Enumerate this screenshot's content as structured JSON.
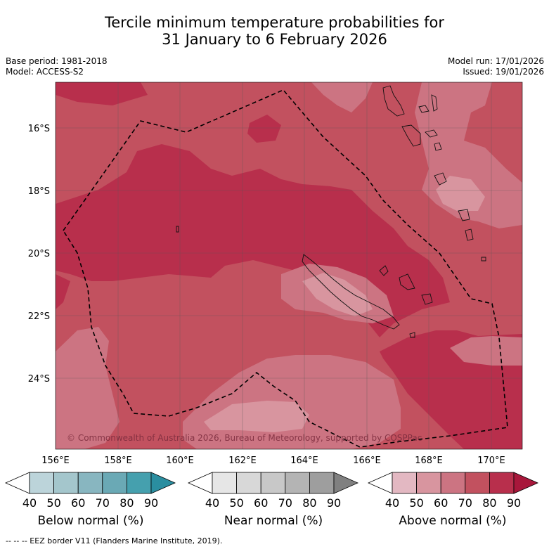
{
  "title": {
    "line1": "Tercile minimum temperature probabilities for",
    "line2": "31 January to 6 February 2026"
  },
  "meta": {
    "base_period": "Base period: 1981-2018",
    "model": "Model: ACCESS-S2",
    "model_run": "Model run: 17/01/2026",
    "issued": "Issued: 19/01/2026"
  },
  "map": {
    "lat_labels": [
      "16°S",
      "18°S",
      "20°S",
      "22°S",
      "24°S"
    ],
    "lon_labels": [
      "156°E",
      "158°E",
      "160°E",
      "162°E",
      "164°E",
      "166°E",
      "168°E",
      "170°E"
    ],
    "copyright": "© Commonwealth of Australia 2026, Bureau of Meteorology, supported by COSPPac"
  },
  "legend": {
    "tick_labels": [
      "40",
      "50",
      "60",
      "70",
      "80",
      "90"
    ],
    "below": {
      "label": "Below normal (%)",
      "colors": [
        "#ffffff",
        "#bcd4da",
        "#a4c6cc",
        "#88b6c0",
        "#6aa9b5",
        "#45a0ae",
        "#2a8ea0"
      ]
    },
    "near": {
      "label": "Near normal (%)",
      "colors": [
        "#ffffff",
        "#e6e6e6",
        "#d8d8d8",
        "#c8c8c8",
        "#b4b4b4",
        "#9e9e9e",
        "#808080"
      ]
    },
    "above": {
      "label": "Above normal (%)",
      "colors": [
        "#ffffff",
        "#e3b8c2",
        "#d8959f",
        "#cc7482",
        "#c2515f",
        "#b82f4c",
        "#a8173b"
      ]
    }
  },
  "footnote": "--  --  -- EEZ border V11 (Flanders Marine Institute, 2019)."
}
